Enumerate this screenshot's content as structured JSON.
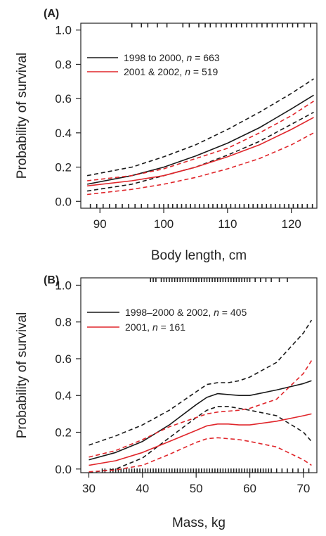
{
  "colors": {
    "black_series": "#1a1a1a",
    "red_series": "#e0262b",
    "axis": "#222222"
  },
  "chart_data": [
    {
      "type": "line",
      "panel_label": "(A)",
      "xlabel": "Body length, cm",
      "ylabel": "Probability of survival",
      "xlim": [
        87,
        124
      ],
      "ylim": [
        -0.04,
        1.04
      ],
      "xticks": [
        90,
        100,
        110,
        120
      ],
      "yticks": [
        0.0,
        0.2,
        0.4,
        0.6,
        0.8,
        1.0
      ],
      "ytick_labels": [
        "0.0",
        "0.2",
        "0.4",
        "0.6",
        "0.8",
        "1.0"
      ],
      "grid": false,
      "legend_position": "top-left",
      "legend": [
        {
          "prefix": "1998 to 2000, ",
          "n_label": "n",
          "suffix": " = 663",
          "color": "#1a1a1a"
        },
        {
          "prefix": "2001 & 2002, ",
          "n_label": "n",
          "suffix": " = 519",
          "color": "#e0262b"
        }
      ],
      "series": [
        {
          "name": "1998 to 2000, n = 663",
          "color": "#1a1a1a",
          "style": "solid",
          "x": [
            88,
            95,
            100,
            105,
            110,
            115,
            120,
            123.5
          ],
          "y": [
            0.1,
            0.15,
            0.2,
            0.265,
            0.34,
            0.43,
            0.54,
            0.62
          ]
        },
        {
          "color": "#1a1a1a",
          "style": "dashed",
          "x": [
            88,
            95,
            100,
            105,
            110,
            115,
            120,
            123.5
          ],
          "y": [
            0.15,
            0.2,
            0.26,
            0.33,
            0.42,
            0.52,
            0.63,
            0.715
          ]
        },
        {
          "color": "#1a1a1a",
          "style": "dashed",
          "x": [
            88,
            95,
            100,
            105,
            110,
            115,
            120,
            123.5
          ],
          "y": [
            0.06,
            0.1,
            0.15,
            0.2,
            0.27,
            0.35,
            0.45,
            0.52
          ]
        },
        {
          "name": "2001 & 2002, n = 519",
          "color": "#e0262b",
          "style": "solid",
          "x": [
            88,
            95,
            100,
            105,
            110,
            115,
            120,
            123.5
          ],
          "y": [
            0.09,
            0.12,
            0.15,
            0.2,
            0.26,
            0.33,
            0.42,
            0.49
          ]
        },
        {
          "color": "#e0262b",
          "style": "dashed",
          "x": [
            88,
            95,
            100,
            105,
            110,
            115,
            120,
            123.5
          ],
          "y": [
            0.12,
            0.15,
            0.19,
            0.25,
            0.31,
            0.4,
            0.5,
            0.585
          ]
        },
        {
          "color": "#e0262b",
          "style": "dashed",
          "x": [
            88,
            95,
            100,
            105,
            110,
            115,
            120,
            123.5
          ],
          "y": [
            0.04,
            0.07,
            0.1,
            0.14,
            0.19,
            0.25,
            0.33,
            0.4
          ]
        }
      ],
      "rug_top": [
        95,
        96.5,
        97.5,
        99,
        100.5,
        103,
        104,
        105.5,
        106.5,
        107.3,
        108.2,
        109,
        109.8,
        110.6,
        111.4,
        112.2,
        113,
        113.8,
        114.6,
        115.4,
        116.2,
        117,
        117.8,
        118.6,
        119.4,
        120.2,
        121,
        122,
        123
      ],
      "rug_bottom": [
        88.5,
        89.5,
        90.5,
        91.5,
        92.5,
        93.5,
        94.5,
        95.5,
        96.5,
        97.5,
        98.5,
        99.3,
        100,
        100.7,
        101.4,
        102.1,
        102.8,
        103.5,
        104.2,
        104.9,
        105.6,
        106.3,
        107,
        107.7,
        108.4,
        109.1,
        109.8,
        110.5,
        111.2,
        111.9,
        112.6,
        113.3,
        114,
        114.7,
        115.4,
        116.1,
        116.8,
        117.5,
        118.2,
        118.9,
        119.6,
        120.3,
        121,
        121.7,
        122.5,
        123.3
      ]
    },
    {
      "type": "line",
      "panel_label": "(B)",
      "xlabel": "Mass, kg",
      "ylabel": "Probability of survival",
      "xlim": [
        28.5,
        72.5
      ],
      "ylim": [
        -0.02,
        1.04
      ],
      "xticks": [
        30,
        40,
        50,
        60,
        70
      ],
      "yticks": [
        0.0,
        0.2,
        0.4,
        0.6,
        0.8,
        1.0
      ],
      "ytick_labels": [
        "0.0",
        "0.2",
        "0.4",
        "0.6",
        "0.8",
        "1.0"
      ],
      "grid": false,
      "legend_position": "top-left",
      "legend": [
        {
          "prefix": "1998–2000 & 2002, ",
          "n_label": "n",
          "suffix": " = 405",
          "color": "#1a1a1a"
        },
        {
          "prefix": "2001, ",
          "n_label": "n",
          "suffix": " = 161",
          "color": "#e0262b"
        }
      ],
      "series": [
        {
          "name": "1998–2000 & 2002, n = 405",
          "color": "#1a1a1a",
          "style": "solid",
          "x": [
            30,
            35,
            40,
            45,
            50,
            52,
            54,
            56,
            58,
            60,
            65,
            70,
            71.5
          ],
          "y": [
            0.05,
            0.09,
            0.15,
            0.24,
            0.35,
            0.39,
            0.41,
            0.405,
            0.4,
            0.4,
            0.43,
            0.465,
            0.48
          ]
        },
        {
          "color": "#1a1a1a",
          "style": "dashed",
          "x": [
            30,
            35,
            40,
            45,
            50,
            52,
            54,
            56,
            58,
            60,
            65,
            70,
            71.5
          ],
          "y": [
            0.13,
            0.18,
            0.24,
            0.32,
            0.42,
            0.46,
            0.47,
            0.47,
            0.48,
            0.5,
            0.58,
            0.74,
            0.81
          ]
        },
        {
          "color": "#1a1a1a",
          "style": "dashed",
          "x": [
            30,
            35,
            40,
            45,
            50,
            52,
            54,
            56,
            58,
            60,
            65,
            70,
            71.5
          ],
          "y": [
            -0.02,
            0.0,
            0.06,
            0.17,
            0.28,
            0.32,
            0.34,
            0.34,
            0.33,
            0.32,
            0.29,
            0.2,
            0.15
          ]
        },
        {
          "name": "2001, n = 161",
          "color": "#e0262b",
          "style": "solid",
          "x": [
            30,
            35,
            40,
            45,
            50,
            52,
            54,
            56,
            58,
            60,
            65,
            70,
            71.5
          ],
          "y": [
            0.02,
            0.045,
            0.09,
            0.15,
            0.21,
            0.235,
            0.245,
            0.245,
            0.24,
            0.24,
            0.26,
            0.29,
            0.3
          ]
        },
        {
          "color": "#e0262b",
          "style": "dashed",
          "x": [
            30,
            35,
            40,
            45,
            50,
            52,
            54,
            56,
            58,
            60,
            65,
            70,
            71.5
          ],
          "y": [
            0.065,
            0.1,
            0.16,
            0.23,
            0.28,
            0.3,
            0.31,
            0.315,
            0.32,
            0.33,
            0.38,
            0.52,
            0.59
          ]
        },
        {
          "color": "#e0262b",
          "style": "dashed",
          "x": [
            30,
            35,
            40,
            45,
            50,
            52,
            54,
            56,
            58,
            60,
            65,
            70,
            71.5
          ],
          "y": [
            -0.015,
            -0.005,
            0.02,
            0.08,
            0.145,
            0.165,
            0.17,
            0.165,
            0.16,
            0.15,
            0.12,
            0.05,
            0.02
          ]
        }
      ],
      "rug_top": [
        41.5,
        42,
        42.5,
        43.5,
        44,
        44.5,
        45,
        45.5,
        46,
        46.5,
        47,
        47.5,
        48,
        48.5,
        49,
        49.5,
        50,
        50.5,
        51,
        51.5,
        52,
        52.5,
        53,
        53.5,
        54,
        54.5,
        55,
        55.5,
        56,
        56.5,
        57,
        57.5,
        58,
        58.5,
        59,
        59.5,
        60,
        61,
        62,
        63,
        64,
        65.5,
        67
      ],
      "rug_bottom": [
        32.5,
        33,
        34,
        34.5,
        35,
        35.5,
        36,
        36.5,
        37,
        37.5,
        38,
        38.5,
        39,
        39.5,
        40,
        40.5,
        41,
        41.5,
        42,
        42.5,
        43,
        43.5,
        44,
        44.5,
        45,
        45.5,
        46,
        46.5,
        47,
        47.5,
        48,
        48.5,
        49,
        49.5,
        50,
        50.5,
        51,
        51.5,
        52,
        52.5,
        53,
        53.5,
        54,
        54.5,
        55,
        55.5,
        56,
        56.5,
        57,
        57.5,
        58,
        58.5,
        59,
        59.5,
        60,
        60.5,
        61,
        61.5,
        62,
        62.5,
        63,
        63.5,
        64,
        65,
        66,
        67,
        68,
        69,
        70,
        71
      ]
    }
  ]
}
